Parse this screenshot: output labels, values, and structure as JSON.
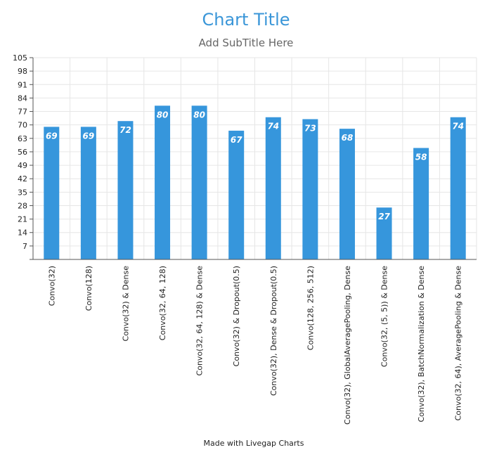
{
  "chart_data": {
    "type": "bar",
    "title": "Chart Title",
    "subtitle": "Add SubTitle Here",
    "xlabel": "",
    "ylabel": "",
    "categories": [
      "Convo(32)",
      "Convo(128)",
      "Convo(32) & Dense",
      "Convo(32, 64, 128)",
      "Convo(32, 64, 128) & Dense",
      "Convo(32) & Dropout(0.5)",
      "Convo(32), Dense & Dropout(0.5)",
      "Convo(128, 256, 512)",
      "Convo(32), GlobalAveragePooling, Dense",
      "Convo(32, (5, 5)) & Dense",
      "Convo(32), BatchNormalization & Dense",
      "Convo(32, 64), AveragePooling & Dense"
    ],
    "values": [
      69,
      69,
      72,
      80,
      80,
      67,
      74,
      73,
      68,
      27,
      58,
      74
    ],
    "ylim": [
      0,
      105
    ],
    "yticks": [
      7,
      14,
      21,
      28,
      35,
      42,
      49,
      56,
      63,
      70,
      77,
      84,
      91,
      98,
      105
    ],
    "grid": true,
    "legend": "none",
    "colors": {
      "bar": "#3696dc",
      "title": "#3a96d8",
      "grid": "#e6e6e6"
    }
  },
  "footer": {
    "credit": "Made with Livegap Charts"
  }
}
